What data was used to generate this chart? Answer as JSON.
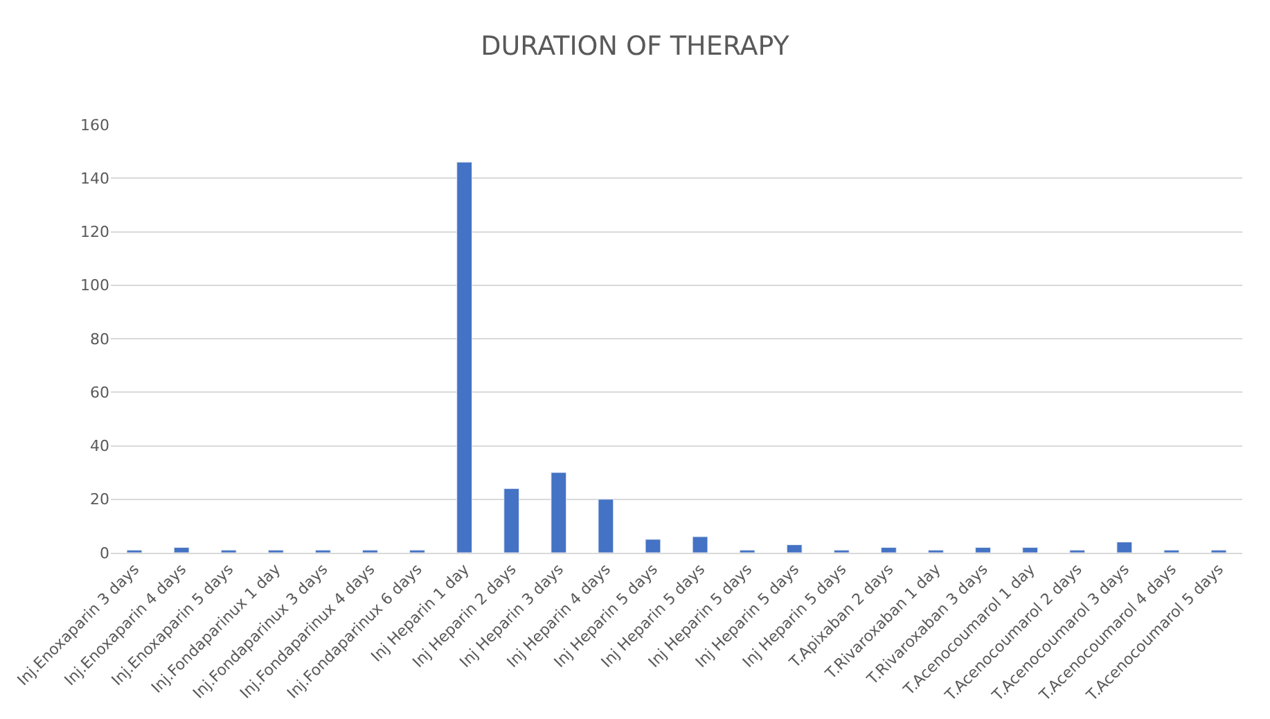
{
  "chart_data": {
    "type": "bar",
    "title": "DURATION OF THERAPY",
    "categories": [
      "Inj.Enoxaparin 3 days",
      "Inj.Enoxaparin 4 days",
      "Inj.Enoxaparin 5 days",
      "Inj.Fondaparinux 1 day",
      "Inj.Fondaparinux 3 days",
      "Inj.Fondaparinux 4 days",
      "Inj.Fondaparinux 6 days",
      "Inj Heparin 1 day",
      "Inj Heparin 2 days",
      "Inj Heparin 3 days",
      "Inj Heparin 4 days",
      "Inj Heparin 5 days",
      "Inj Heparin 5 days",
      "Inj Heparin 5 days",
      "Inj Heparin 5 days",
      "Inj Heparin 5 days",
      "T.Apixaban 2 days",
      "T.Rivaroxaban 1 day",
      "T.Rivaroxaban 3 days",
      "T.Acenocoumarol 1 day",
      "T.Acenocoumarol 2 days",
      "T.Acenocoumarol 3 days",
      "T.Acenocoumarol 4 days",
      "T.Acenocoumarol 5 days"
    ],
    "values": [
      1,
      2,
      1,
      1,
      1,
      1,
      1,
      146,
      24,
      30,
      20,
      5,
      6,
      1,
      3,
      1,
      2,
      1,
      2,
      2,
      1,
      4,
      1,
      1
    ],
    "color": "#4472c4",
    "ylim": [
      0,
      160
    ],
    "yticks": [
      0,
      20,
      40,
      60,
      80,
      100,
      120,
      140,
      160
    ],
    "grid": "y"
  }
}
